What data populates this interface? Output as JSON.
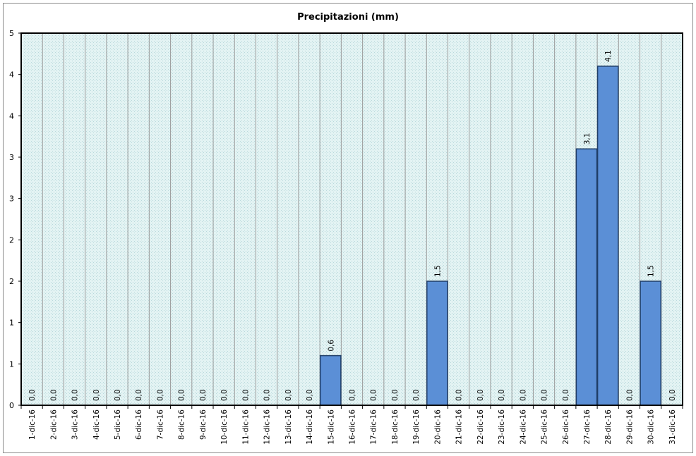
{
  "chart_data": {
    "type": "bar",
    "title": "Precipitazioni (mm)",
    "xlabel": "",
    "ylabel": "",
    "ylim": [
      0,
      4.5
    ],
    "y_tick_values": [
      0,
      0.5,
      1,
      1.5,
      2,
      2.5,
      3,
      3.5,
      4,
      4.5
    ],
    "y_tick_labels": [
      "0",
      "1",
      "1",
      "2",
      "2",
      "3",
      "3",
      "4",
      "4",
      "5"
    ],
    "categories": [
      "1-dic-16",
      "2-dic-16",
      "3-dic-16",
      "4-dic-16",
      "5-dic-16",
      "6-dic-16",
      "7-dic-16",
      "8-dic-16",
      "9-dic-16",
      "10-dic-16",
      "11-dic-16",
      "12-dic-16",
      "13-dic-16",
      "14-dic-16",
      "15-dic-16",
      "16-dic-16",
      "17-dic-16",
      "18-dic-16",
      "19-dic-16",
      "20-dic-16",
      "21-dic-16",
      "22-dic-16",
      "23-dic-16",
      "24-dic-16",
      "25-dic-16",
      "26-dic-16",
      "27-dic-16",
      "28-dic-16",
      "29-dic-16",
      "30-dic-16",
      "31-dic-16"
    ],
    "values": [
      0,
      0,
      0,
      0,
      0,
      0,
      0,
      0,
      0,
      0,
      0,
      0,
      0,
      0,
      0.6,
      0,
      0,
      0,
      0,
      1.5,
      0,
      0,
      0,
      0,
      0,
      0,
      3.1,
      4.1,
      0,
      1.5,
      0
    ],
    "data_labels": [
      "0,0",
      "0,0",
      "0,0",
      "0,0",
      "0,0",
      "0,0",
      "0,0",
      "0,0",
      "0,0",
      "0,0",
      "0,0",
      "0,0",
      "0,0",
      "0,0",
      "0,6",
      "0,0",
      "0,0",
      "0,0",
      "0,0",
      "1,5",
      "0,0",
      "0,0",
      "0,0",
      "0,0",
      "0,0",
      "0,0",
      "3,1",
      "4,1",
      "0,0",
      "1,5",
      "0,0"
    ],
    "grid": true,
    "legend": "none",
    "colors": {
      "bar_fill": "#5b8fd6",
      "bar_stroke": "#1f3d66",
      "plot_bg": "#dcefef",
      "grid": "#9a9a9a",
      "axis": "#000000"
    }
  }
}
